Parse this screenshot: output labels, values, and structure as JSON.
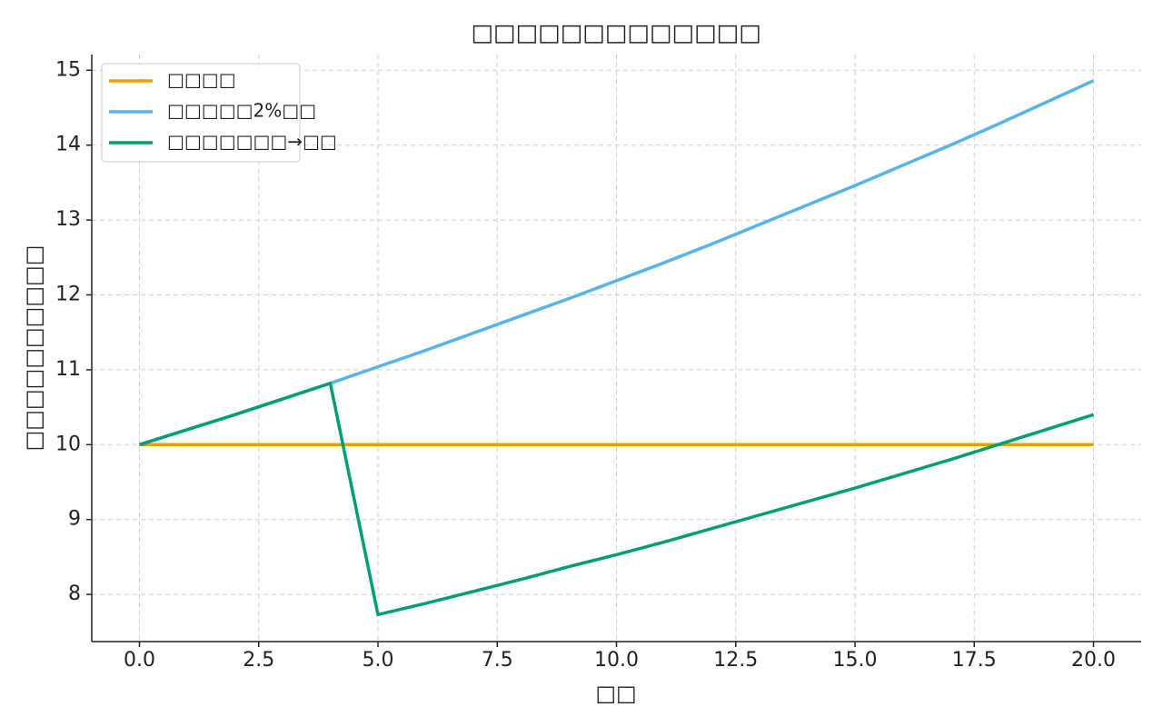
{
  "chart_data": {
    "type": "line",
    "title": "□□□□□□□□□□□□□",
    "x_label": "□□",
    "y_label": "□□□□□□□□□□",
    "x": [
      0,
      1,
      2,
      3,
      4,
      5,
      6,
      7,
      8,
      9,
      10,
      11,
      12,
      13,
      14,
      15,
      16,
      17,
      18,
      19,
      20
    ],
    "series": [
      {
        "name": "□□□□",
        "color": "#e69f00",
        "values": [
          10,
          10,
          10,
          10,
          10,
          10,
          10,
          10,
          10,
          10,
          10,
          10,
          10,
          10,
          10,
          10,
          10,
          10,
          10,
          10,
          10
        ]
      },
      {
        "name": "□□□□□2%□□",
        "color": "#56b4e9",
        "values": [
          10,
          10.2,
          10.4,
          10.61,
          10.82,
          11.04,
          11.26,
          11.49,
          11.72,
          11.95,
          12.19,
          12.43,
          12.68,
          12.94,
          13.2,
          13.46,
          13.73,
          14.0,
          14.28,
          14.57,
          14.86
        ]
      },
      {
        "name": "□□□□□□□→□□",
        "color": "#009e73",
        "values": [
          10,
          10.2,
          10.4,
          10.61,
          10.82,
          7.73,
          7.88,
          8.04,
          8.2,
          8.37,
          8.53,
          8.7,
          8.88,
          9.06,
          9.24,
          9.42,
          9.61,
          9.8,
          10.0,
          10.2,
          10.4
        ]
      }
    ],
    "xlim": [
      -1,
      21
    ],
    "ylim": [
      7.37,
      15.21
    ],
    "xticks": [
      {
        "value": 0,
        "label": "0.0"
      },
      {
        "value": 2.5,
        "label": "2.5"
      },
      {
        "value": 5,
        "label": "5.0"
      },
      {
        "value": 7.5,
        "label": "7.5"
      },
      {
        "value": 10,
        "label": "10.0"
      },
      {
        "value": 12.5,
        "label": "12.5"
      },
      {
        "value": 15,
        "label": "15.0"
      },
      {
        "value": 17.5,
        "label": "17.5"
      },
      {
        "value": 20,
        "label": "20.0"
      }
    ],
    "yticks": [
      8,
      9,
      10,
      11,
      12,
      13,
      14,
      15
    ],
    "grid": true,
    "legend": "upper-left"
  }
}
